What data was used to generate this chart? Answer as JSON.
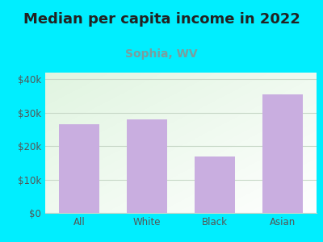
{
  "title": "Median per capita income in 2022",
  "subtitle": "Sophia, WV",
  "categories": [
    "All",
    "White",
    "Black",
    "Asian"
  ],
  "values": [
    26500,
    28000,
    17000,
    35500
  ],
  "bar_color": "#c9aee0",
  "title_fontsize": 13,
  "subtitle_fontsize": 10,
  "subtitle_color": "#7a9e9e",
  "title_color": "#222222",
  "background_outer": "#00eeff",
  "ylim": [
    0,
    42000
  ],
  "yticks": [
    0,
    10000,
    20000,
    30000,
    40000
  ],
  "ytick_labels": [
    "$0",
    "$10k",
    "$20k",
    "$30k",
    "$40k"
  ],
  "grid_color": "#c8d8c8",
  "tick_color": "#555555",
  "bar_width": 0.6
}
